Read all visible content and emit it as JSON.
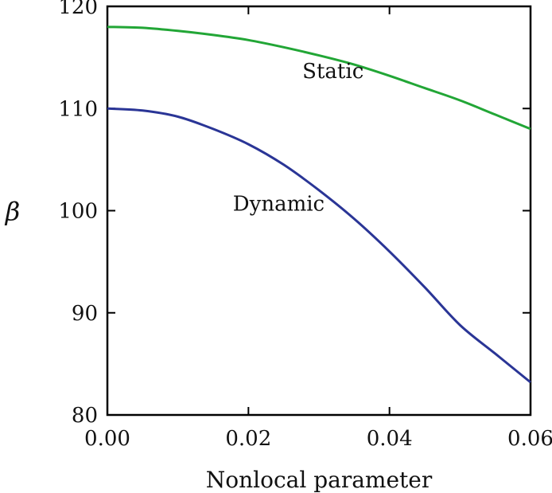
{
  "chart_data": {
    "type": "line",
    "xlabel": "Nonlocal parameter",
    "ylabel": "β",
    "xlim": [
      0,
      0.06
    ],
    "ylim": [
      80,
      120
    ],
    "x_ticks": [
      0,
      0.02,
      0.04,
      0.06
    ],
    "x_tick_labels": [
      "0.00",
      "0.02",
      "0.04",
      "0.06"
    ],
    "y_ticks": [
      80,
      90,
      100,
      110,
      120
    ],
    "y_tick_labels": [
      "80",
      "90",
      "100",
      "110",
      "120"
    ],
    "grid": false,
    "legend": "none",
    "series": [
      {
        "name": "Static",
        "color": "#22a636",
        "x": [
          0,
          0.005,
          0.01,
          0.015,
          0.02,
          0.025,
          0.03,
          0.035,
          0.04,
          0.045,
          0.05,
          0.055,
          0.06
        ],
        "values": [
          118.0,
          117.9,
          117.6,
          117.2,
          116.7,
          116.0,
          115.2,
          114.3,
          113.2,
          112.0,
          110.8,
          109.4,
          108.0
        ]
      },
      {
        "name": "Dynamic",
        "color": "#2a3596",
        "x": [
          0,
          0.005,
          0.01,
          0.015,
          0.02,
          0.025,
          0.03,
          0.035,
          0.04,
          0.045,
          0.05,
          0.055,
          0.06
        ],
        "values": [
          110.0,
          109.8,
          109.2,
          108.0,
          106.5,
          104.5,
          102.0,
          99.2,
          96.0,
          92.5,
          88.8,
          86.0,
          83.2
        ]
      }
    ],
    "annotations": [
      {
        "text": "Static",
        "x": 0.032,
        "y": 113.0
      },
      {
        "text": "Dynamic",
        "x": 0.0243,
        "y": 100.0
      }
    ]
  }
}
